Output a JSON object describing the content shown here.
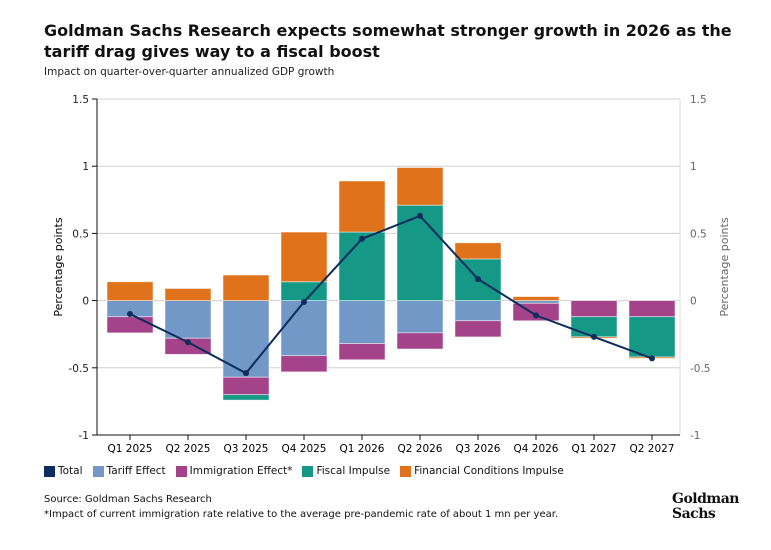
{
  "chart_data": {
    "type": "bar",
    "stacked": true,
    "title": "Goldman Sachs Research expects somewhat stronger growth in 2026 as the tariff drag gives way to a fiscal boost",
    "subtitle": "Impact on quarter-over-quarter annualized GDP growth",
    "ylabel": "Percentage points",
    "ylabel_right": "Percentage points",
    "ylim": [
      -1,
      1.5
    ],
    "yticks": [
      1.5,
      1,
      0.5,
      0,
      -0.5,
      -1
    ],
    "ytick_labels": [
      "1.5",
      "1",
      "0.5",
      "0",
      "-0.5",
      "-1"
    ],
    "grid": true,
    "legend_placement": "bottom",
    "categories": [
      "Q1 2025",
      "Q2 2025",
      "Q3 2025",
      "Q4 2025",
      "Q1 2026",
      "Q2 2026",
      "Q3 2026",
      "Q4 2026",
      "Q1 2027",
      "Q2 2027"
    ],
    "series": [
      {
        "name": "Total",
        "type": "line",
        "color": "#0d2d5e",
        "values": [
          -0.1,
          -0.31,
          -0.54,
          -0.01,
          0.46,
          0.63,
          0.16,
          -0.11,
          -0.27,
          -0.43
        ]
      },
      {
        "name": "Tariff Effect",
        "color": "#7198c6",
        "values": [
          -0.12,
          -0.28,
          -0.57,
          -0.41,
          -0.32,
          -0.24,
          -0.15,
          -0.02,
          0,
          0
        ]
      },
      {
        "name": "Immigration Effect*",
        "color": "#a4428a",
        "values": [
          -0.12,
          -0.12,
          -0.13,
          -0.12,
          -0.12,
          -0.12,
          -0.12,
          -0.13,
          -0.12,
          -0.12
        ]
      },
      {
        "name": "Fiscal Impulse",
        "color": "#159886",
        "values": [
          0,
          0,
          -0.04,
          0.14,
          0.51,
          0.71,
          0.31,
          0,
          -0.15,
          -0.3
        ]
      },
      {
        "name": "Financial Conditions Impulse",
        "color": "#e0721b",
        "values": [
          0.14,
          0.09,
          0.19,
          0.37,
          0.38,
          0.28,
          0.12,
          0.03,
          -0.01,
          -0.01
        ]
      }
    ]
  },
  "footer": {
    "source": "Source: Goldman Sachs Research",
    "note": "*Impact of current immigration rate relative to the average pre-pandemic rate of about 1 mn per year.",
    "logo": "Goldman Sachs"
  }
}
